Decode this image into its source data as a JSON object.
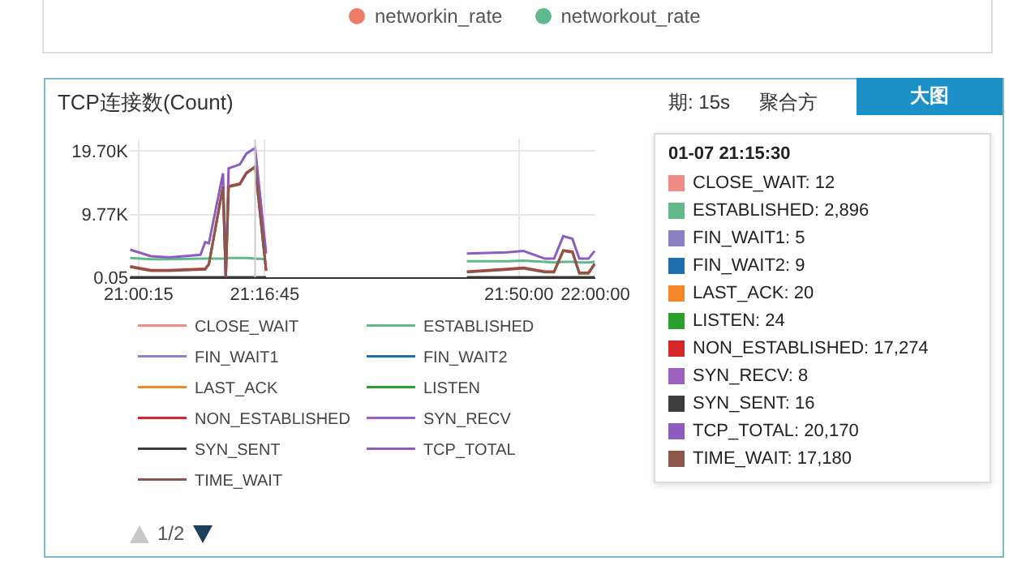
{
  "chart_data": {
    "type": "line",
    "title": "TCP连接数(Count)",
    "x": [
      20.9858,
      21.0308,
      21.0717,
      21.1392,
      21.1493,
      21.1575,
      21.1882,
      21.1943,
      21.2005,
      21.225,
      21.2393,
      21.2583,
      21.2823,
      21.5,
      21.72,
      21.8083,
      21.8433,
      21.89,
      21.91,
      21.93,
      21.95,
      21.965,
      21.985,
      21.9983
    ],
    "series": [
      {
        "name": "CLOSE_WAIT",
        "color": "#f08c86",
        "values": [
          null,
          null,
          null,
          null,
          null,
          null,
          null,
          null,
          null,
          null,
          null,
          null,
          null,
          null,
          null,
          null,
          null,
          null,
          null,
          null,
          null,
          null,
          null,
          null
        ]
      },
      {
        "name": "ESTABLISHED",
        "color": "#62b88a",
        "values": [
          3000,
          2800,
          2800,
          2900,
          2900,
          2900,
          2900,
          2900,
          3000,
          3000,
          3000,
          2896,
          2800,
          null,
          2500,
          2500,
          2600,
          2400,
          2300,
          2400,
          2400,
          2300,
          2300,
          2400
        ]
      },
      {
        "name": "FIN_WAIT1",
        "color": "#8d7fc4",
        "values": [
          null,
          null,
          null,
          null,
          null,
          null,
          null,
          null,
          null,
          null,
          null,
          null,
          null,
          null,
          null,
          null,
          null,
          null,
          null,
          null,
          null,
          null,
          null,
          null
        ]
      },
      {
        "name": "FIN_WAIT2",
        "color": "#1f6fb0",
        "values": [
          null,
          null,
          null,
          null,
          null,
          null,
          null,
          null,
          null,
          null,
          null,
          null,
          null,
          null,
          null,
          null,
          null,
          null,
          null,
          null,
          null,
          null,
          null,
          null
        ]
      },
      {
        "name": "LAST_ACK",
        "color": "#f5872a",
        "values": [
          null,
          null,
          null,
          null,
          null,
          null,
          null,
          null,
          null,
          null,
          null,
          null,
          null,
          null,
          null,
          null,
          null,
          null,
          null,
          null,
          null,
          null,
          null,
          null
        ]
      },
      {
        "name": "LISTEN",
        "color": "#2ca02c",
        "values": [
          null,
          null,
          null,
          null,
          null,
          null,
          null,
          null,
          null,
          null,
          null,
          null,
          null,
          null,
          null,
          null,
          null,
          null,
          null,
          null,
          null,
          null,
          null,
          null
        ]
      },
      {
        "name": "NON_ESTABLISHED",
        "color": "#d62728",
        "values": [
          1700,
          1100,
          1100,
          1300,
          1300,
          2100,
          14200,
          50,
          14200,
          14600,
          16300,
          17274,
          1100,
          null,
          900,
          1300,
          1500,
          900,
          900,
          4200,
          4000,
          700,
          700,
          2100
        ]
      },
      {
        "name": "SYN_RECV",
        "color": "#9b5fc0",
        "values": [
          null,
          null,
          null,
          null,
          null,
          null,
          null,
          null,
          null,
          null,
          null,
          null,
          null,
          null,
          null,
          null,
          null,
          null,
          null,
          null,
          null,
          null,
          null,
          null
        ]
      },
      {
        "name": "SYN_SENT",
        "color": "#3d3d3d",
        "values": [
          16,
          16,
          16,
          16,
          16,
          16,
          16,
          16,
          16,
          16,
          16,
          16,
          16,
          null,
          16,
          16,
          16,
          16,
          16,
          16,
          16,
          16,
          16,
          16
        ]
      },
      {
        "name": "TCP_TOTAL",
        "color": "#8e5bbf",
        "values": [
          4300,
          3300,
          3100,
          3500,
          5500,
          5300,
          16200,
          50,
          17000,
          17600,
          19300,
          20170,
          3700,
          null,
          3700,
          3900,
          4100,
          2900,
          2900,
          6400,
          6000,
          2900,
          2900,
          4100
        ]
      },
      {
        "name": "TIME_WAIT",
        "color": "#8c564b",
        "values": [
          1600,
          1000,
          1000,
          1200,
          1200,
          2000,
          14100,
          50,
          14100,
          14500,
          16200,
          17180,
          1000,
          null,
          800,
          1200,
          1400,
          800,
          800,
          4100,
          3900,
          600,
          600,
          2000
        ]
      }
    ],
    "xlim": [
      20.985,
      22.0
    ],
    "xticks": [
      {
        "value": 21.0042,
        "label": "21:00:15"
      },
      {
        "value": 21.2792,
        "label": "21:16:45"
      },
      {
        "value": 21.8333,
        "label": "21:50:00"
      },
      {
        "value": 22.0,
        "label": "22:00:00"
      }
    ],
    "ylim": [
      0.05,
      21500
    ],
    "yticks": [
      0.05,
      {
        "value": 9770,
        "label": "9.77K"
      },
      {
        "value": 19700,
        "label": "19.70K"
      }
    ],
    "ref_lines": [
      {
        "axis": "x",
        "value": 21.2583,
        "color": "#cccccc"
      }
    ],
    "grid": true,
    "legend": "bottom",
    "marker": "none",
    "line_style": "solid",
    "annotations": [
      "networkin_rate",
      "networkout_rate",
      "期: 15s",
      "聚合方",
      "大图",
      "1/2",
      "01-07 21:15:30",
      "CLOSE_WAIT: 12",
      "ESTABLISHED: 2,896",
      "FIN_WAIT1: 5",
      "FIN_WAIT2: 9",
      "LAST_ACK: 20",
      "LISTEN: 24",
      "NON_ESTABLISHED: 17,274",
      "SYN_RECV: 8",
      "SYN_SENT: 16",
      "TCP_TOTAL: 20,170",
      "TIME_WAIT: 17,180"
    ]
  }
}
